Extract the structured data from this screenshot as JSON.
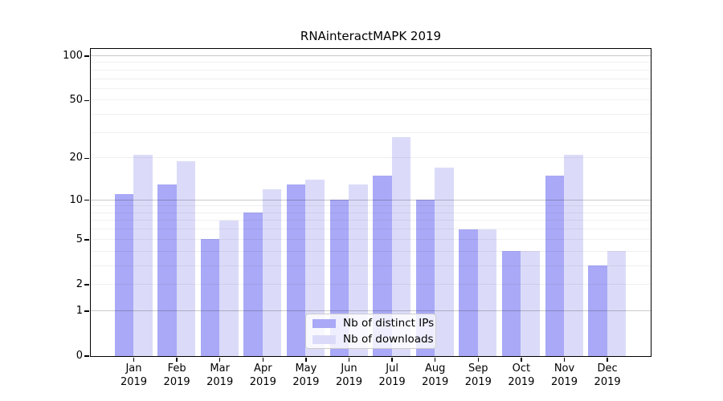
{
  "chart_data": {
    "type": "bar",
    "title": "RNAinteractMAPK 2019",
    "categories": [
      "Jan",
      "Feb",
      "Mar",
      "Apr",
      "May",
      "Jun",
      "Jul",
      "Aug",
      "Sep",
      "Oct",
      "Nov",
      "Dec"
    ],
    "category_year": "2019",
    "series": [
      {
        "name": "Nb of distinct IPs",
        "color": "#a9a9f7",
        "values": [
          11,
          13,
          5,
          8,
          13,
          10,
          15,
          10,
          6,
          4,
          15,
          3
        ]
      },
      {
        "name": "Nb of downloads",
        "color": "#dbdbf9",
        "values": [
          21,
          19,
          7,
          12,
          14,
          13,
          28,
          17,
          6,
          4,
          21,
          4
        ]
      }
    ],
    "yscale": "log1p",
    "yticks": [
      0,
      1,
      2,
      5,
      10,
      20,
      50,
      100
    ],
    "ylim": [
      0,
      100
    ],
    "grid": true,
    "grid_major_values": [
      1,
      10,
      100
    ],
    "grid_minor_values": [
      2,
      3,
      4,
      5,
      6,
      7,
      8,
      9,
      20,
      30,
      40,
      50,
      60,
      70,
      80,
      90
    ],
    "legend_position": "lower center"
  }
}
